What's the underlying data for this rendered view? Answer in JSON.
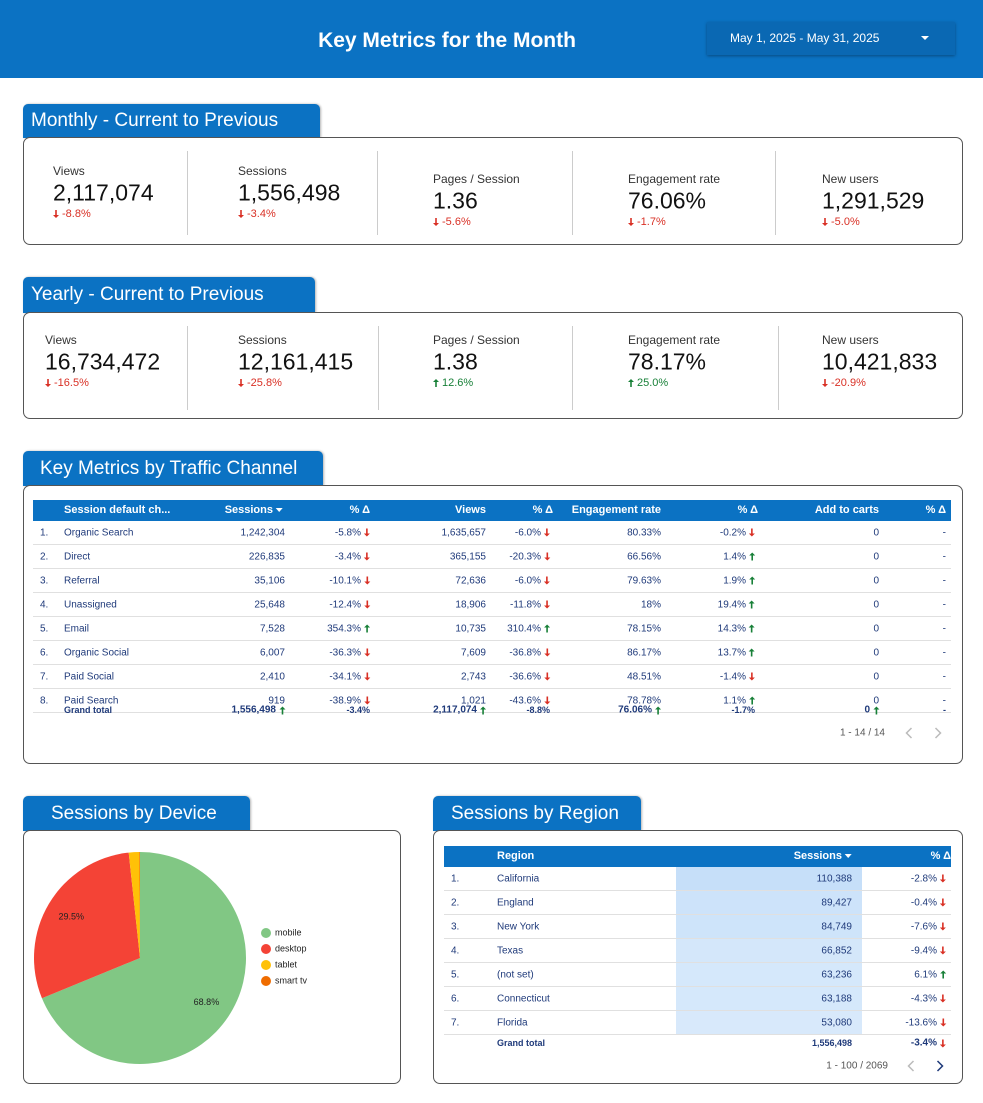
{
  "header": {
    "title": "Key Metrics for the Month",
    "date_range": "May 1, 2025 - May 31, 2025"
  },
  "monthly": {
    "title": "Monthly - Current to Previous",
    "cards": [
      {
        "label": "Views",
        "value": "2,117,074",
        "change": "-8.8%"
      },
      {
        "label": "Sessions",
        "value": "1,556,498",
        "change": "-3.4%"
      },
      {
        "label": "Pages / Session",
        "value": "1.36",
        "change": "-5.6%"
      },
      {
        "label": "Engagement rate",
        "value": "76.06%",
        "change": "-1.7%"
      },
      {
        "label": "New users",
        "value": "1,291,529",
        "change": "-5.0%"
      }
    ]
  },
  "yearly": {
    "title": "Yearly - Current to Previous",
    "cards": [
      {
        "label": "Views",
        "value": "16,734,472",
        "change": "-16.5%"
      },
      {
        "label": "Sessions",
        "value": "12,161,415",
        "change": "-25.8%"
      },
      {
        "label": "Pages / Session",
        "value": "1.38",
        "change": "12.6%"
      },
      {
        "label": "Engagement rate",
        "value": "78.17%",
        "change": "25.0%"
      },
      {
        "label": "New users",
        "value": "10,421,833",
        "change": "-20.9%"
      }
    ]
  },
  "channel_table": {
    "title": "Key Metrics by Traffic Channel",
    "columns": [
      "Session default ch...",
      "Sessions",
      "% Δ",
      "Views",
      "% Δ",
      "Engagement rate",
      "% Δ",
      "Add to carts",
      "% Δ"
    ],
    "rows": [
      [
        "1.",
        "Organic Search",
        "1,242,304",
        "-5.8%",
        "1,635,657",
        "-6.0%",
        "80.33%",
        "-0.2%",
        "0",
        "-"
      ],
      [
        "2.",
        "Direct",
        "226,835",
        "-3.4%",
        "365,155",
        "-20.3%",
        "66.56%",
        "1.4%",
        "0",
        "-"
      ],
      [
        "3.",
        "Referral",
        "35,106",
        "-10.1%",
        "72,636",
        "-6.0%",
        "79.63%",
        "1.9%",
        "0",
        "-"
      ],
      [
        "4.",
        "Unassigned",
        "25,648",
        "-12.4%",
        "18,906",
        "-11.8%",
        "18%",
        "19.4%",
        "0",
        "-"
      ],
      [
        "5.",
        "Email",
        "7,528",
        "354.3%",
        "10,735",
        "310.4%",
        "78.15%",
        "14.3%",
        "0",
        "-"
      ],
      [
        "6.",
        "Organic Social",
        "6,007",
        "-36.3%",
        "7,609",
        "-36.8%",
        "86.17%",
        "13.7%",
        "0",
        "-"
      ],
      [
        "7.",
        "Paid Social",
        "2,410",
        "-34.1%",
        "2,743",
        "-36.6%",
        "48.51%",
        "-1.4%",
        "0",
        "-"
      ],
      [
        "8.",
        "Paid Search",
        "919",
        "-38.9%",
        "1,021",
        "-43.6%",
        "78.78%",
        "1.1%",
        "0",
        "-"
      ]
    ],
    "total": [
      "Grand total",
      "1,556,498",
      "-3.4%",
      "2,117,074",
      "-8.8%",
      "76.06%",
      "-1.7%",
      "0",
      "-"
    ],
    "pagination": "1 - 14 / 14"
  },
  "chart_data": {
    "type": "pie",
    "title": "Sessions by Device",
    "categories": [
      "mobile",
      "desktop",
      "tablet",
      "smart tv"
    ],
    "values": [
      68.8,
      29.5,
      1.6,
      0.1
    ],
    "value_labels": [
      "68.8%",
      "29.5%",
      null,
      null
    ],
    "colors": [
      "#81c784",
      "#f44336",
      "#ffc107",
      "#ef6c00"
    ]
  },
  "region_table": {
    "title": "Sessions by Region",
    "columns": [
      "Region",
      "Sessions",
      "% Δ"
    ],
    "rows": [
      [
        "1.",
        "California",
        "110,388",
        "-2.8%"
      ],
      [
        "2.",
        "England",
        "89,427",
        "-0.4%"
      ],
      [
        "3.",
        "New York",
        "84,749",
        "-7.6%"
      ],
      [
        "4.",
        "Texas",
        "66,852",
        "-9.4%"
      ],
      [
        "5.",
        "(not set)",
        "63,236",
        "6.1%"
      ],
      [
        "6.",
        "Connecticut",
        "63,188",
        "-4.3%"
      ],
      [
        "7.",
        "Florida",
        "53,080",
        "-13.6%"
      ]
    ],
    "total": [
      "Grand total",
      "1,556,498",
      "-3.4%"
    ],
    "pagination": "1 - 100 / 2069"
  }
}
